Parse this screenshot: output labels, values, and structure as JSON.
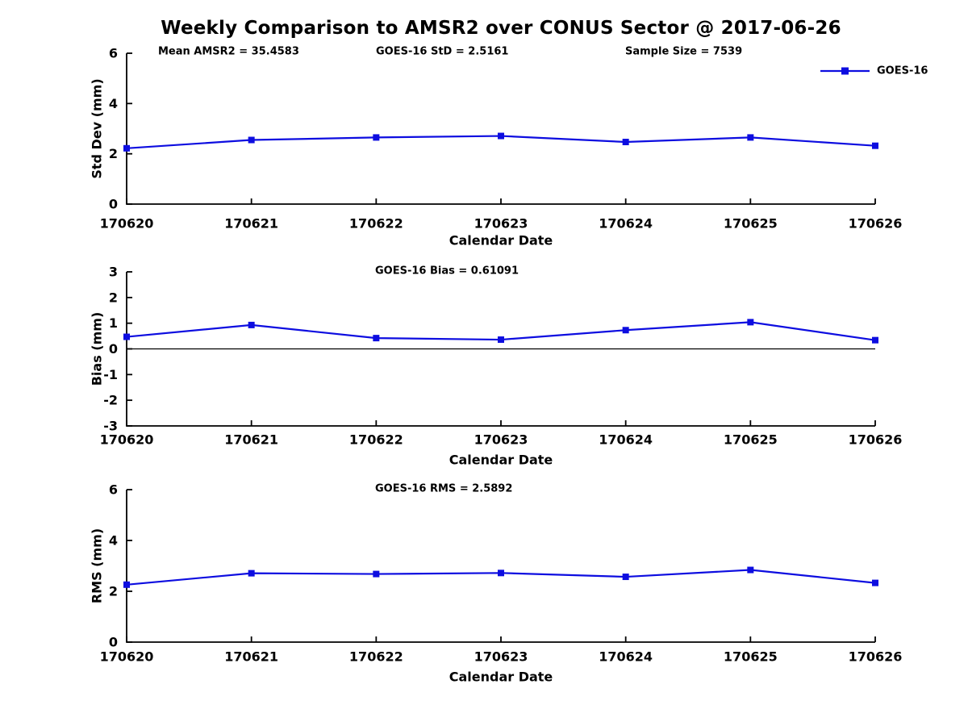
{
  "title": "Weekly Comparison to AMSR2 over CONUS Sector @ 2017-06-26",
  "colors": {
    "line": "#0d0de0",
    "axis": "#000000",
    "text": "#000000",
    "background": "#ffffff"
  },
  "legend": {
    "label": "GOES-16",
    "position": "top-right"
  },
  "chart_data": [
    {
      "type": "line",
      "id": "std-dev",
      "title": "",
      "xlabel": "Calendar Date",
      "ylabel": "Std Dev (mm)",
      "categories": [
        "170620",
        "170621",
        "170622",
        "170623",
        "170624",
        "170625",
        "170626"
      ],
      "series": [
        {
          "name": "GOES-16",
          "values": [
            2.22,
            2.55,
            2.65,
            2.71,
            2.47,
            2.65,
            2.32
          ]
        }
      ],
      "ylim": [
        0,
        6
      ],
      "yticks": [
        0,
        2,
        4,
        6
      ],
      "grid": false,
      "zero_line": false,
      "show_legend": true,
      "annotations": [
        "Mean AMSR2 = 35.4583",
        "GOES-16 StD = 2.5161",
        "Sample Size = 7539"
      ]
    },
    {
      "type": "line",
      "id": "bias",
      "title": "",
      "xlabel": "Calendar Date",
      "ylabel": "Bias (mm)",
      "categories": [
        "170620",
        "170621",
        "170622",
        "170623",
        "170624",
        "170625",
        "170626"
      ],
      "series": [
        {
          "name": "GOES-16",
          "values": [
            0.47,
            0.93,
            0.42,
            0.36,
            0.73,
            1.04,
            0.34
          ]
        }
      ],
      "ylim": [
        -3,
        3
      ],
      "yticks": [
        -3,
        -2,
        -1,
        0,
        1,
        2,
        3
      ],
      "grid": false,
      "zero_line": true,
      "show_legend": false,
      "annotations": [
        "GOES-16 Bias  = 0.61091"
      ]
    },
    {
      "type": "line",
      "id": "rms",
      "title": "",
      "xlabel": "Calendar Date",
      "ylabel": "RMS (mm)",
      "categories": [
        "170620",
        "170621",
        "170622",
        "170623",
        "170624",
        "170625",
        "170626"
      ],
      "series": [
        {
          "name": "GOES-16",
          "values": [
            2.26,
            2.71,
            2.68,
            2.72,
            2.57,
            2.84,
            2.33
          ]
        }
      ],
      "ylim": [
        0,
        6
      ],
      "yticks": [
        0,
        2,
        4,
        6
      ],
      "grid": false,
      "zero_line": false,
      "show_legend": false,
      "annotations": [
        "GOES-16 RMS = 2.5892"
      ]
    }
  ]
}
